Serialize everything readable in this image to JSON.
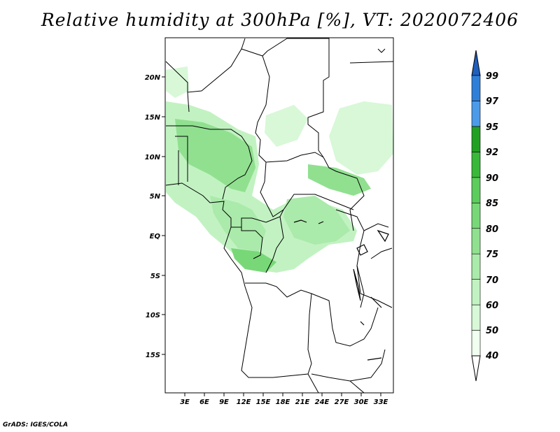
{
  "title": "Relative humidity at 300hPa [%], VT: 2020072406",
  "credit": "GrADS: IGES/COLA",
  "map": {
    "lon_range": [
      0,
      35
    ],
    "lat_range": [
      -20,
      24.5
    ],
    "lon_ticks": [
      "3E",
      "6E",
      "9E",
      "12E",
      "15E",
      "18E",
      "21E",
      "24E",
      "27E",
      "30E",
      "33E"
    ],
    "lat_ticks": [
      "20N",
      "15N",
      "10N",
      "5N",
      "EQ",
      "5S",
      "10S",
      "15S"
    ]
  },
  "colorbar": {
    "labels": [
      "40",
      "50",
      "60",
      "70",
      "75",
      "80",
      "85",
      "90",
      "92",
      "95",
      "97",
      "99"
    ],
    "colors": [
      "#f0fff0",
      "#d8f8d8",
      "#c2f2c2",
      "#aaeaaa",
      "#90e090",
      "#78d878",
      "#5ccc5c",
      "#3ab83a",
      "#22a022",
      "#118811",
      "#4c9be8",
      "#2f7fd8",
      "#1e5fbe"
    ]
  }
}
